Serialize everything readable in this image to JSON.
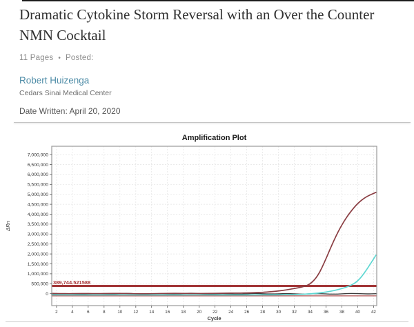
{
  "page": {
    "title": "Dramatic Cytokine Storm Reversal with an Over the Counter NMN Cocktail",
    "meta": {
      "pages": "11 Pages",
      "separator": "•",
      "posted": "Posted:"
    },
    "author": {
      "name": "Robert Huizenga",
      "affiliation": "Cedars Sinai Medical Center"
    },
    "date_written": "Date Written: April 20, 2020"
  },
  "colors": {
    "title_text": "#2f2f2f",
    "meta_text": "#8c8c8c",
    "link": "#4e8ca7",
    "affil_text": "#6f6f6f",
    "date_text": "#555555",
    "divider": "#c4c4c4",
    "plot_border": "#9a9a9a",
    "grid": "#e3e3e3",
    "axis_text": "#333333",
    "curve_dark_red": "#8a3d42",
    "curve_cyan": "#5ed7d2",
    "threshold": "#a23537",
    "threshold_label": "#a83335",
    "baseline": "#3c3c3c",
    "flat_red_line": "#b05252"
  },
  "chart_data": {
    "type": "line",
    "title": "Amplification Plot",
    "xlabel": "Cycle",
    "ylabel": "ΔRn",
    "grid": true,
    "legend": false,
    "xlim": [
      1.4,
      42.4
    ],
    "ylim": [
      -600000,
      7420000
    ],
    "xticks": [
      {
        "v": 2,
        "label": "2"
      },
      {
        "v": 4,
        "label": "4"
      },
      {
        "v": 6,
        "label": "6"
      },
      {
        "v": 8,
        "label": "8"
      },
      {
        "v": 10,
        "label": "10"
      },
      {
        "v": 12,
        "label": "12"
      },
      {
        "v": 14,
        "label": "14"
      },
      {
        "v": 16,
        "label": "16"
      },
      {
        "v": 18,
        "label": "18"
      },
      {
        "v": 20,
        "label": "20"
      },
      {
        "v": 22,
        "label": "22"
      },
      {
        "v": 24,
        "label": "24"
      },
      {
        "v": 26,
        "label": "26"
      },
      {
        "v": 28,
        "label": "28"
      },
      {
        "v": 30,
        "label": "30"
      },
      {
        "v": 32,
        "label": "32"
      },
      {
        "v": 34,
        "label": "34"
      },
      {
        "v": 36,
        "label": "36"
      },
      {
        "v": 38,
        "label": "38"
      },
      {
        "v": 40,
        "label": "40"
      },
      {
        "v": 42,
        "label": "42"
      }
    ],
    "yticks": [
      {
        "v": 0,
        "label": "0"
      },
      {
        "v": 500000,
        "label": "500,000"
      },
      {
        "v": 1000000,
        "label": "1,000,000"
      },
      {
        "v": 1500000,
        "label": "1,500,000"
      },
      {
        "v": 2000000,
        "label": "2,000,000"
      },
      {
        "v": 2500000,
        "label": "2,500,000"
      },
      {
        "v": 3000000,
        "label": "3,000,000"
      },
      {
        "v": 3500000,
        "label": "3,500,000"
      },
      {
        "v": 4000000,
        "label": "4,000,000"
      },
      {
        "v": 4500000,
        "label": "4,500,000"
      },
      {
        "v": 5000000,
        "label": "5,000,000"
      },
      {
        "v": 5500000,
        "label": "5,500,000"
      },
      {
        "v": 6000000,
        "label": "6,000,000"
      },
      {
        "v": 6500000,
        "label": "6,500,000"
      },
      {
        "v": 7000000,
        "label": "7,000,000"
      }
    ],
    "threshold": {
      "value": 389744.521588,
      "label": "389,744.521588"
    },
    "series": [
      {
        "name": "red-flat-line",
        "color_key": "flat_red_line",
        "width": 1.2,
        "smooth": false,
        "points": [
          [
            1.4,
            -110000
          ],
          [
            42.4,
            -110000
          ]
        ]
      },
      {
        "name": "dark-baseline",
        "color_key": "baseline",
        "width": 1.4,
        "smooth": true,
        "points": [
          [
            1.4,
            -20000
          ],
          [
            3,
            20000
          ],
          [
            5,
            -35000
          ],
          [
            7,
            10000
          ],
          [
            9,
            -25000
          ],
          [
            11,
            30000
          ],
          [
            13,
            -40000
          ],
          [
            15,
            15000
          ],
          [
            17,
            -20000
          ],
          [
            19,
            35000
          ],
          [
            21,
            -30000
          ],
          [
            23,
            10000
          ],
          [
            25,
            -35000
          ],
          [
            27,
            20000
          ],
          [
            29,
            -25000
          ],
          [
            31,
            15000
          ],
          [
            33,
            -30000
          ],
          [
            35,
            10000
          ],
          [
            37,
            -35000
          ],
          [
            39,
            20000
          ],
          [
            41,
            -15000
          ],
          [
            42.4,
            0
          ]
        ]
      },
      {
        "name": "cyan-curve",
        "color_key": "curve_cyan",
        "width": 1.7,
        "smooth": true,
        "points": [
          [
            1.4,
            -60000
          ],
          [
            5,
            -65000
          ],
          [
            10,
            -60000
          ],
          [
            15,
            -65000
          ],
          [
            20,
            -60000
          ],
          [
            25,
            -62000
          ],
          [
            28,
            -60000
          ],
          [
            30,
            -55000
          ],
          [
            32,
            -45000
          ],
          [
            33,
            -30000
          ],
          [
            34,
            -5000
          ],
          [
            35,
            30000
          ],
          [
            36,
            80000
          ],
          [
            37,
            155000
          ],
          [
            38,
            255000
          ],
          [
            39,
            385000
          ],
          [
            40,
            620000
          ],
          [
            41,
            1120000
          ],
          [
            42.3,
            1940000
          ]
        ]
      },
      {
        "name": "dark-red-curve",
        "color_key": "curve_dark_red",
        "width": 1.7,
        "smooth": true,
        "points": [
          [
            1.4,
            10000
          ],
          [
            3,
            -5000
          ],
          [
            5,
            15000
          ],
          [
            7,
            0
          ],
          [
            9,
            18000
          ],
          [
            11,
            5000
          ],
          [
            13,
            -8000
          ],
          [
            15,
            8000
          ],
          [
            17,
            20000
          ],
          [
            19,
            4000
          ],
          [
            21,
            12000
          ],
          [
            23,
            25000
          ],
          [
            25,
            30000
          ],
          [
            26,
            38000
          ],
          [
            27,
            50000
          ],
          [
            28,
            68000
          ],
          [
            29,
            95000
          ],
          [
            30,
            135000
          ],
          [
            31,
            190000
          ],
          [
            32,
            265000
          ],
          [
            33,
            330000
          ],
          [
            34,
            470000
          ],
          [
            35,
            900000
          ],
          [
            36,
            1750000
          ],
          [
            37,
            2700000
          ],
          [
            38,
            3480000
          ],
          [
            39,
            4080000
          ],
          [
            40,
            4550000
          ],
          [
            41,
            4870000
          ],
          [
            42.3,
            5100000
          ]
        ]
      }
    ]
  }
}
